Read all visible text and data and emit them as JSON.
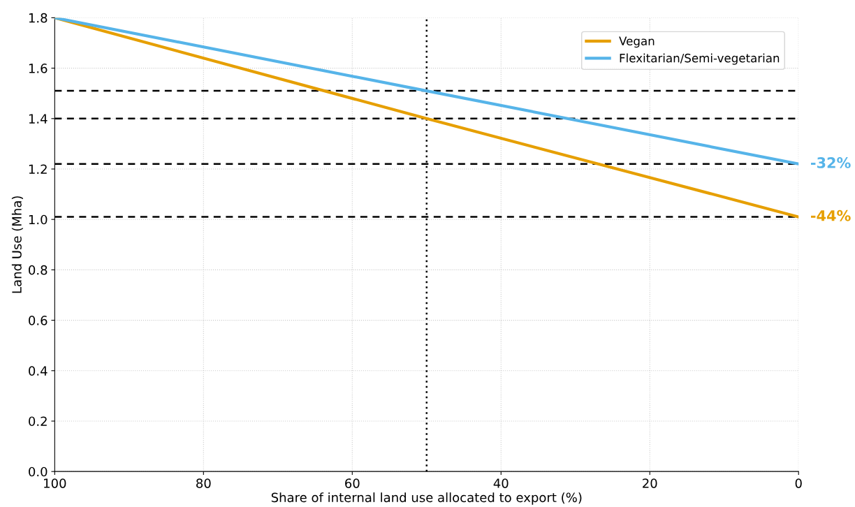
{
  "chart_data": {
    "type": "line",
    "xlabel": "Share of internal land use allocated to export (%)",
    "ylabel": "Land Use (Mha)",
    "x": [
      100,
      50,
      0
    ],
    "series": [
      {
        "name": "Vegan",
        "color": "#e69f00",
        "values": [
          1.8,
          1.4,
          1.01
        ]
      },
      {
        "name": "Flexitarian/Semi-vegetarian",
        "color": "#56b4e9",
        "values": [
          1.8,
          1.51,
          1.22
        ]
      }
    ],
    "xlim": [
      100,
      0
    ],
    "xticks": [
      100,
      80,
      60,
      40,
      20,
      0
    ],
    "ylim": [
      0,
      1.8
    ],
    "yticks": [
      {
        "value": 0,
        "label": "0.0"
      },
      0.2,
      0.4,
      0.6,
      0.8,
      {
        "value": 1,
        "label": "1.0"
      },
      1.2,
      1.4,
      1.6,
      1.8
    ],
    "ref_lines": [
      {
        "axis": "y",
        "value": 1.51,
        "color": "#000000",
        "line_style": "dashed"
      },
      {
        "axis": "y",
        "value": 1.4,
        "color": "#000000",
        "line_style": "dashed"
      },
      {
        "axis": "y",
        "value": 1.22,
        "color": "#000000",
        "line_style": "dashed"
      },
      {
        "axis": "y",
        "value": 1.01,
        "color": "#000000",
        "line_style": "dashed"
      },
      {
        "axis": "x",
        "value": 50,
        "color": "#000000",
        "line_style": "dotted"
      }
    ],
    "annotations": [
      {
        "text": "-44%",
        "x": 0,
        "y": 1.01
      },
      {
        "text": "-32%",
        "x": 0,
        "y": 1.22
      }
    ],
    "grid": true,
    "legend": "top right",
    "line_style": "solid",
    "marker": "none"
  }
}
